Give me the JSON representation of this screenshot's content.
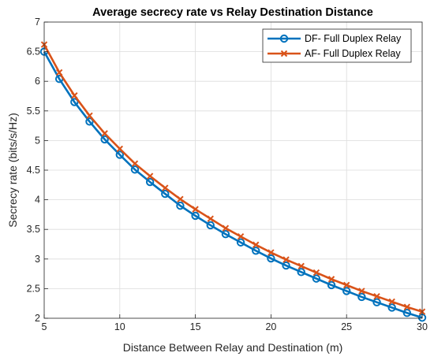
{
  "chart_data": {
    "type": "line",
    "title": "Average secrecy rate vs Relay Destination Distance",
    "xlabel": "Distance Between Relay and Destination (m)",
    "ylabel": "Secrecy rate (bits/s/Hz)",
    "xlim": [
      5,
      30
    ],
    "ylim": [
      2,
      7
    ],
    "xticks": [
      5,
      10,
      15,
      20,
      25,
      30
    ],
    "yticks": [
      2,
      2.5,
      3,
      3.5,
      4,
      4.5,
      5,
      5.5,
      6,
      6.5,
      7
    ],
    "grid": true,
    "legend_position": "top-right",
    "x": [
      5,
      6,
      7,
      8,
      9,
      10,
      11,
      12,
      13,
      14,
      15,
      16,
      17,
      18,
      19,
      20,
      21,
      22,
      23,
      24,
      25,
      26,
      27,
      28,
      29,
      30
    ],
    "series": [
      {
        "name": "DF- Full Duplex Relay",
        "color": "#0072BD",
        "marker": "circle",
        "values": [
          6.5,
          6.04,
          5.65,
          5.32,
          5.02,
          4.76,
          4.51,
          4.3,
          4.1,
          3.9,
          3.73,
          3.57,
          3.42,
          3.28,
          3.14,
          3.01,
          2.89,
          2.78,
          2.67,
          2.56,
          2.46,
          2.36,
          2.27,
          2.18,
          2.09,
          2.01
        ]
      },
      {
        "name": "AF- Full Duplex Relay",
        "color": "#D95319",
        "marker": "x",
        "values": [
          6.62,
          6.15,
          5.76,
          5.42,
          5.12,
          4.86,
          4.61,
          4.4,
          4.2,
          4.01,
          3.84,
          3.68,
          3.52,
          3.38,
          3.24,
          3.11,
          2.99,
          2.88,
          2.77,
          2.66,
          2.56,
          2.46,
          2.37,
          2.28,
          2.19,
          2.11
        ]
      }
    ]
  }
}
